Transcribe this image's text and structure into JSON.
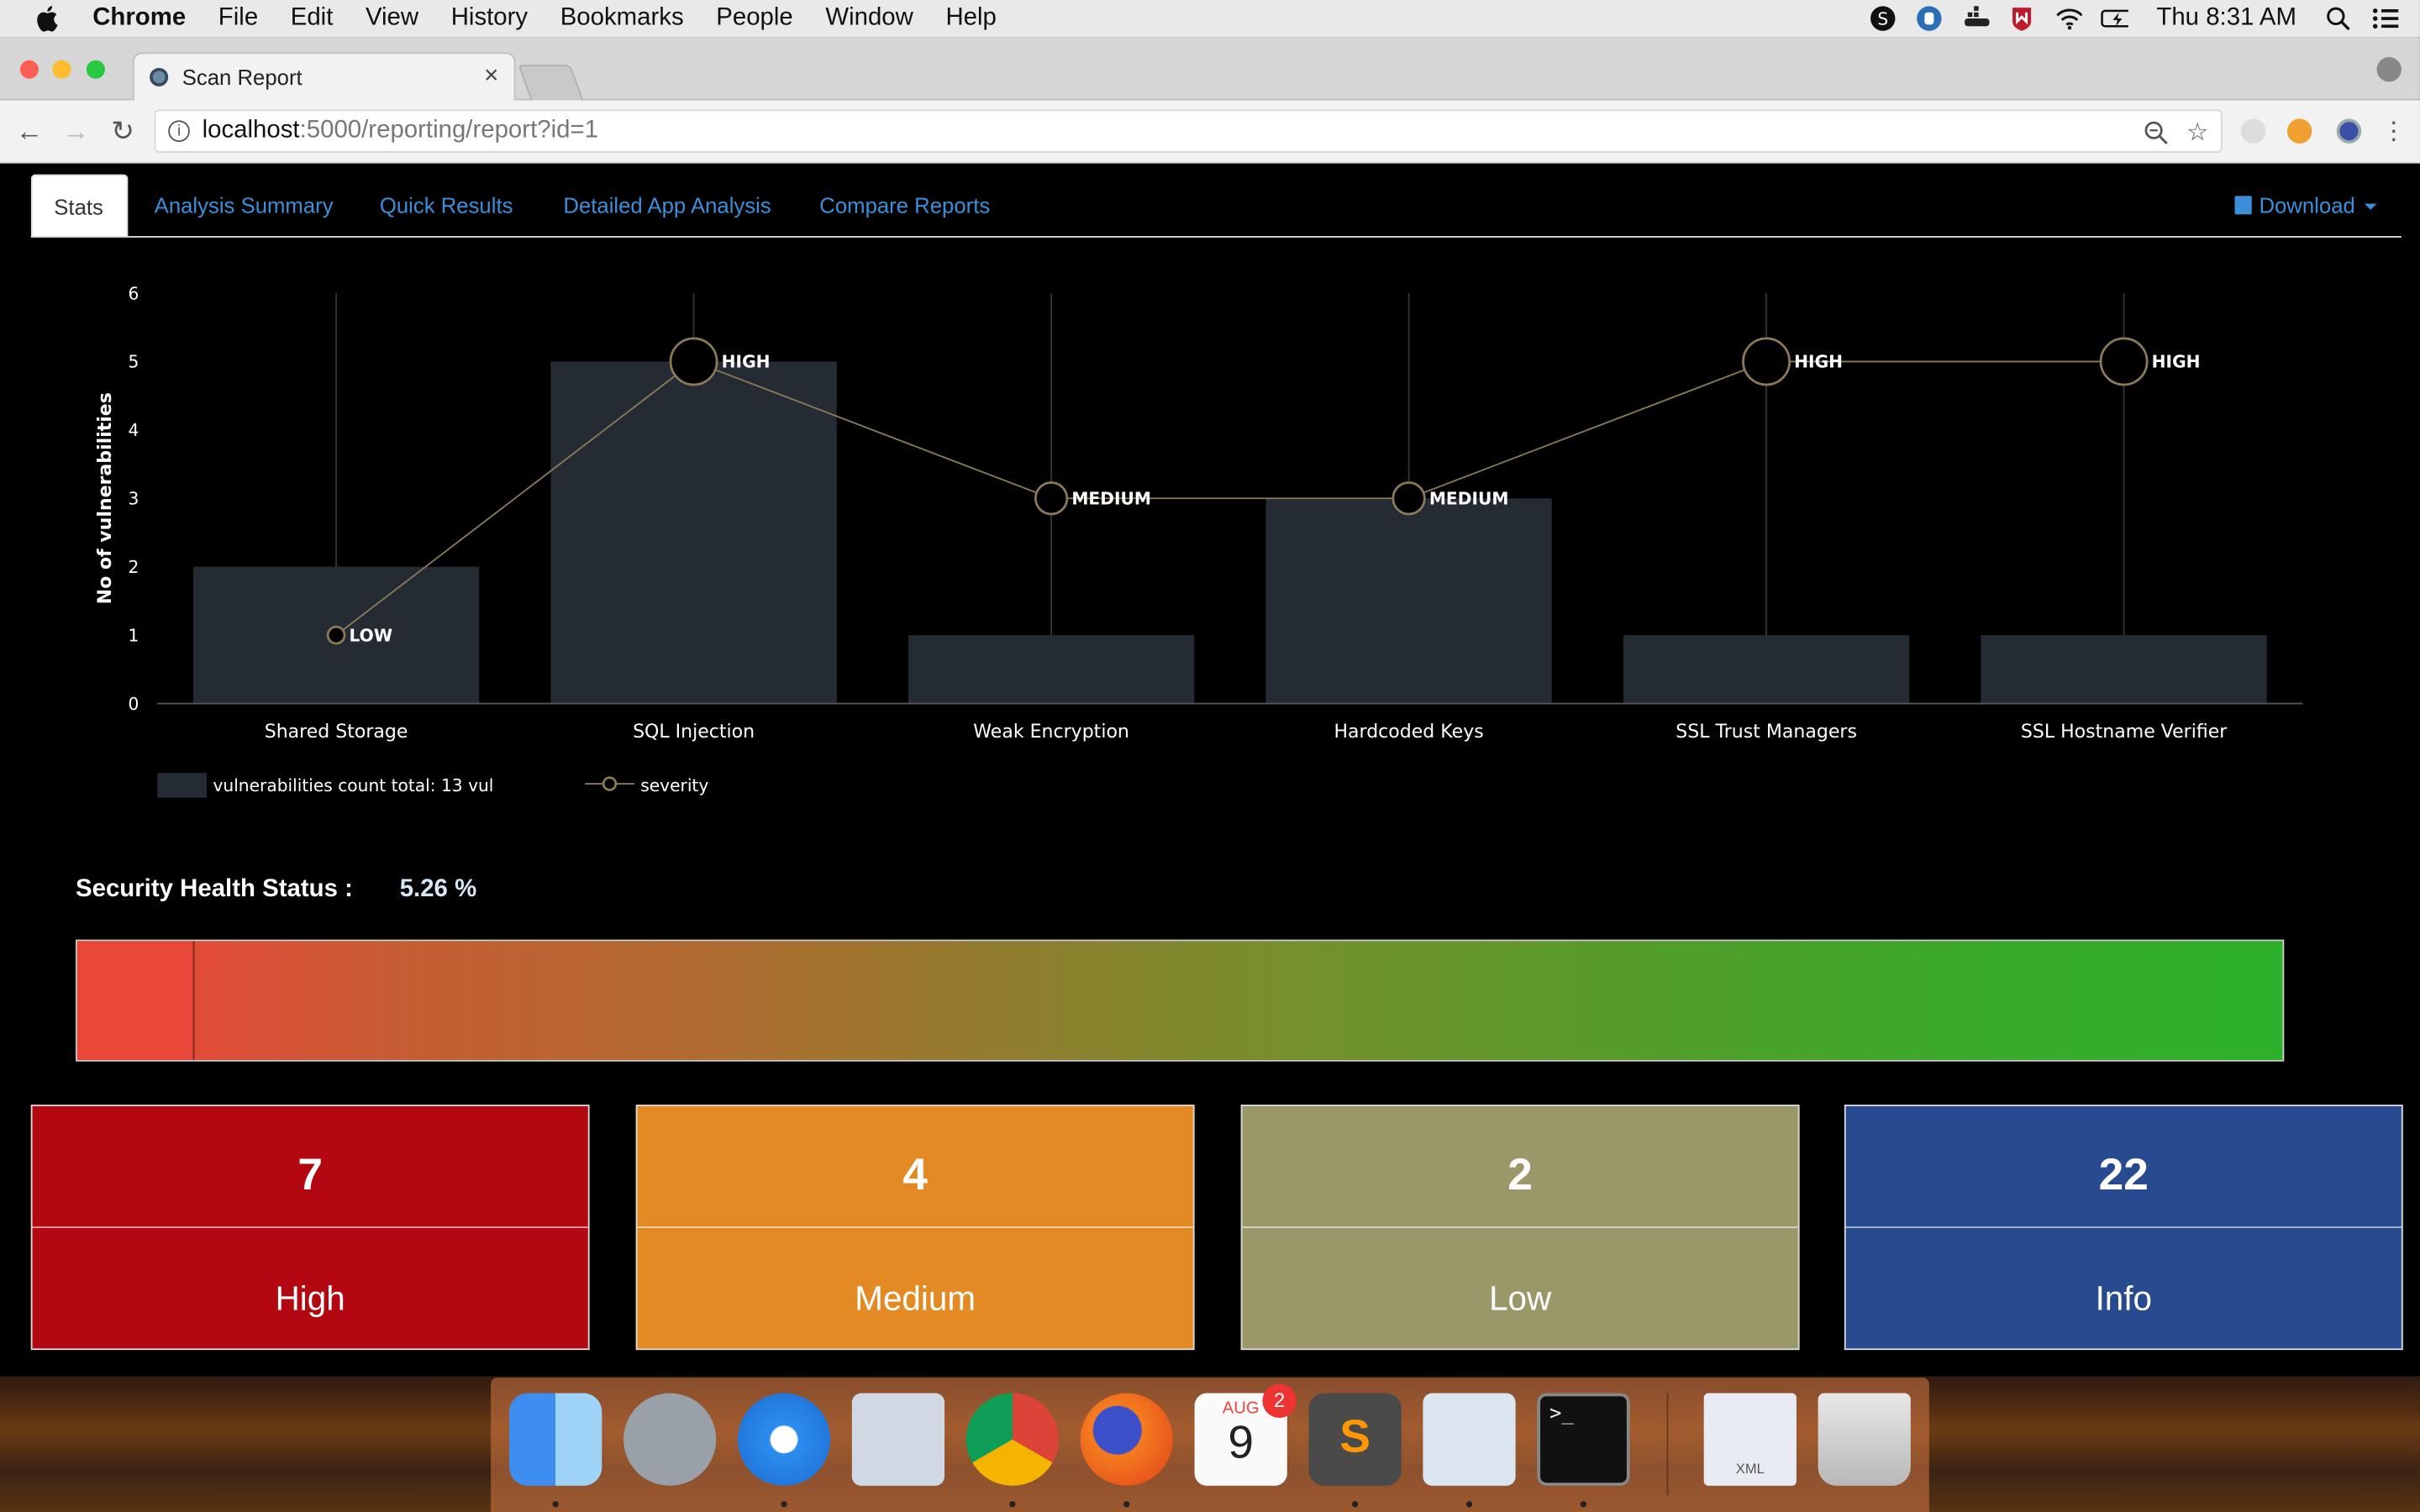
{
  "menubar": {
    "app": "Chrome",
    "items": [
      "File",
      "Edit",
      "View",
      "History",
      "Bookmarks",
      "People",
      "Window",
      "Help"
    ],
    "clock": "Thu 8:31 AM"
  },
  "browser": {
    "tab_title": "Scan Report",
    "url_host": "localhost",
    "url_path": ":5000/reporting/report?id=1"
  },
  "nav": {
    "tabs": [
      "Stats",
      "Analysis Summary",
      "Quick Results",
      "Detailed App Analysis",
      "Compare Reports"
    ],
    "active": "Stats",
    "download": "Download"
  },
  "chart_data": {
    "type": "bar",
    "categories": [
      "Shared Storage",
      "SQL Injection",
      "Weak Encryption",
      "Hardcoded Keys",
      "SSL Trust Managers",
      "SSL Hostname Verifier"
    ],
    "series": [
      {
        "name": "vulnerabilities count total: 13 vul",
        "type": "bar",
        "values": [
          2,
          5,
          1,
          3,
          1,
          1
        ]
      },
      {
        "name": "severity",
        "type": "line",
        "values": [
          1,
          5,
          3,
          3,
          5,
          5
        ],
        "labels": [
          "LOW",
          "HIGH",
          "MEDIUM",
          "MEDIUM",
          "HIGH",
          "HIGH"
        ]
      }
    ],
    "ylabel": "No of vulnerabilities",
    "ylim": [
      0,
      6
    ],
    "yticks": [
      0,
      1,
      2,
      3,
      4,
      5,
      6
    ],
    "colors": {
      "bar": "#252b33",
      "line": "#8a7a5a",
      "marker_fill": "#000000",
      "marker_stroke": "#8a7a5a",
      "grid": "#333333",
      "text": "#ffffff"
    }
  },
  "health": {
    "label": "Security Health Status :",
    "value": "5.26 %",
    "fraction": 0.0526
  },
  "cards": [
    {
      "count": "7",
      "label": "High",
      "color": "#b30711"
    },
    {
      "count": "4",
      "label": "Medium",
      "color": "#e38a24"
    },
    {
      "count": "2",
      "label": "Low",
      "color": "#9a9768"
    },
    {
      "count": "22",
      "label": "Info",
      "color": "#284a8f"
    }
  ],
  "dock": {
    "calendar_month": "AUG",
    "calendar_day": "9",
    "calendar_badge": "2",
    "xml_label": "XML"
  }
}
